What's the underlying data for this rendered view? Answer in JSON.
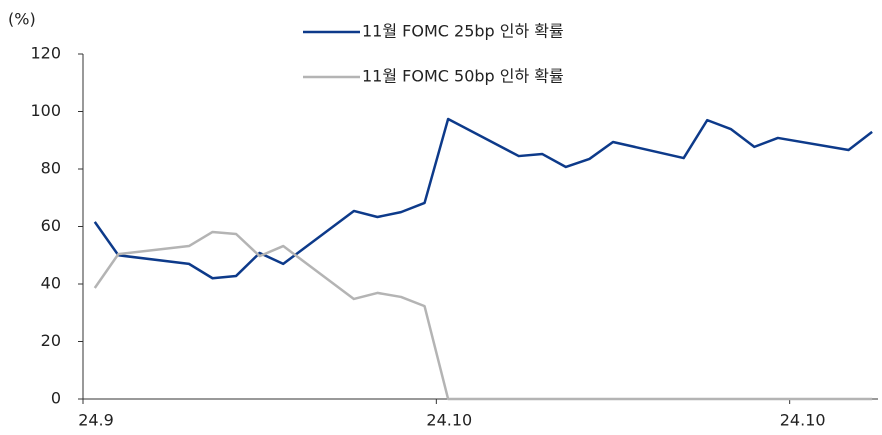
{
  "chart_data": {
    "type": "line",
    "y_label": "(%)",
    "x": [
      0,
      1,
      4,
      5,
      6,
      7,
      8,
      11,
      12,
      13,
      14,
      15,
      18,
      19,
      20,
      21,
      22,
      25,
      26,
      27,
      28,
      29,
      32,
      33
    ],
    "xlim": [
      -0.5,
      33.25
    ],
    "xticks": [
      {
        "value": -0.5,
        "label": "24.9"
      },
      {
        "value": 14.5,
        "label": "24.10"
      },
      {
        "value": 29.5,
        "label": "24.10"
      }
    ],
    "ylim": [
      0,
      120
    ],
    "yticks": [
      0,
      20,
      40,
      60,
      80,
      100,
      120
    ],
    "grid": false,
    "legend": "top",
    "series": [
      {
        "name": "11월 FOMC 25bp 인하 확률",
        "color": "#0d3a8a",
        "values": [
          61.6,
          50,
          47,
          42,
          42.8,
          50.8,
          47,
          65.4,
          63.3,
          65,
          68.2,
          97.4,
          84.5,
          85.2,
          80.7,
          83.5,
          89.4,
          83.8,
          97,
          93.9,
          87.7,
          90.8,
          86.6,
          92.9
        ]
      },
      {
        "name": "11월 FOMC 50bp 인하 확률",
        "color": "#b4b4b4",
        "values": [
          38.6,
          50.4,
          53.2,
          58.1,
          57.4,
          49.7,
          53.2,
          34.8,
          36.9,
          35.5,
          32.3,
          0,
          0,
          0,
          0,
          0,
          0,
          0,
          0,
          0,
          0,
          0,
          0,
          0
        ]
      }
    ]
  }
}
